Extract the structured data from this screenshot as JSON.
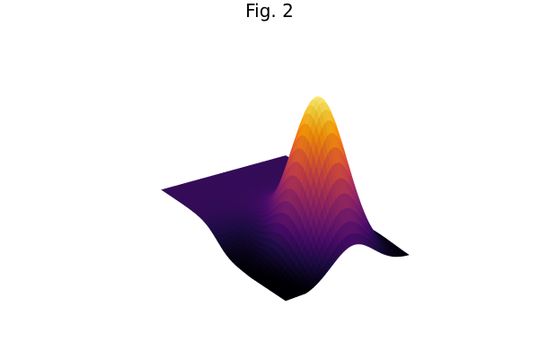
{
  "figure": {
    "title": "Fig. 2"
  },
  "chart_data": {
    "type": "surface3d",
    "title": "Fig. 2",
    "axes_visible": false,
    "colormap": "inferno",
    "colormap_stops": [
      "#000004",
      "#1b0c41",
      "#4a0c6b",
      "#781c6d",
      "#a52c60",
      "#cf4446",
      "#ed6925",
      "#fb9b06",
      "#f7d13d",
      "#fcffa4"
    ],
    "xlim": [
      0,
      1
    ],
    "ylim": [
      0,
      1
    ],
    "zlim": [
      0,
      1
    ],
    "surface": {
      "description_of_shape": "single dominant peak with a low plateau on one side",
      "peak_z": 1.0,
      "plateau_z": 0.18,
      "min_z": 0.0
    }
  }
}
